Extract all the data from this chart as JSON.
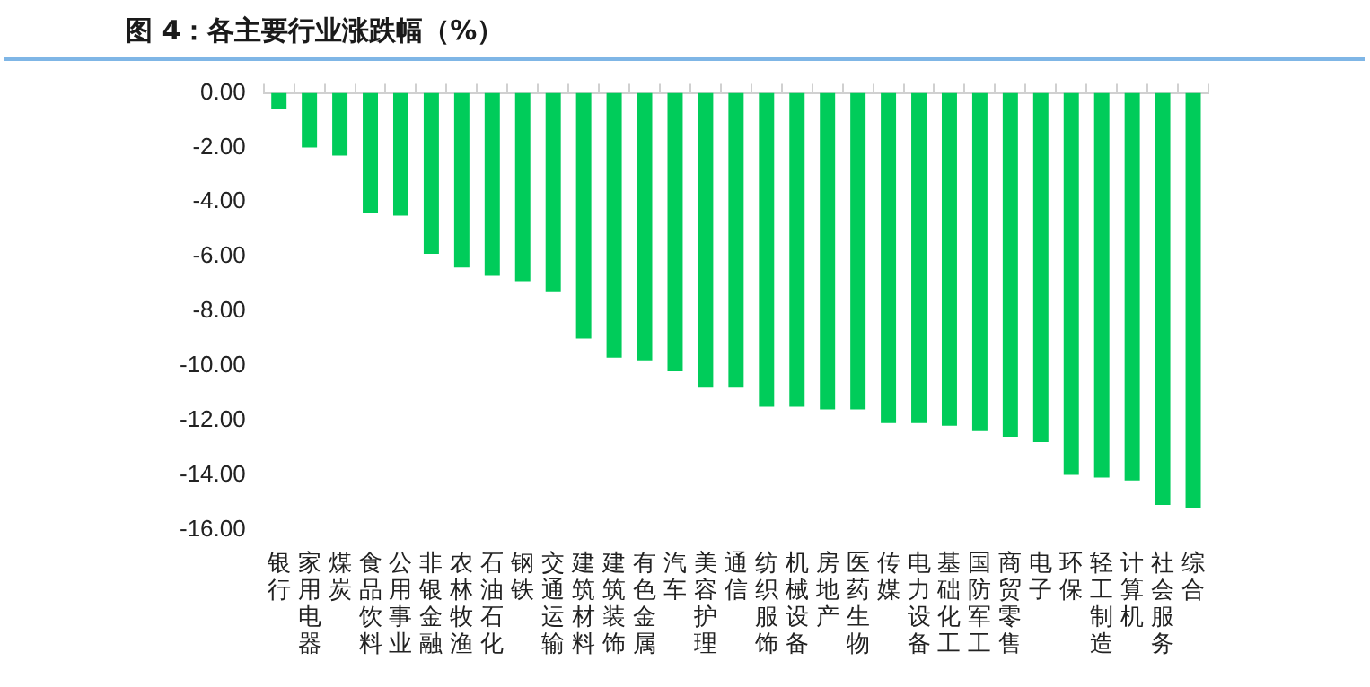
{
  "chart_data": {
    "type": "bar",
    "title": "图 4：各主要行业涨跌幅（%）",
    "categories": [
      "银行",
      "家用电器",
      "煤炭",
      "食品饮料",
      "公用事业",
      "非银金融",
      "农林牧渔",
      "石油石化",
      "钢铁",
      "交通运输",
      "建筑材料",
      "建筑装饰",
      "有色金属",
      "汽车",
      "美容护理",
      "通信",
      "纺织服饰",
      "机械设备",
      "房地产",
      "医药生物",
      "传媒",
      "电力设备",
      "基础化工",
      "国防军工",
      "商贸零售",
      "电子",
      "环保",
      "轻工制造",
      "计算机",
      "社会服务",
      "综合"
    ],
    "values": [
      -0.6,
      -2.0,
      -2.3,
      -4.4,
      -4.5,
      -5.9,
      -6.4,
      -6.7,
      -6.9,
      -7.3,
      -9.0,
      -9.7,
      -9.8,
      -10.2,
      -10.8,
      -10.8,
      -11.5,
      -11.5,
      -11.6,
      -11.6,
      -12.1,
      -12.1,
      -12.2,
      -12.4,
      -12.6,
      -12.8,
      -14.0,
      -14.1,
      -14.2,
      -15.1,
      -15.2
    ],
    "color": "#00cc5a",
    "ylim": [
      -16,
      0
    ],
    "yticks": [
      {
        "value": 0,
        "label": "0.00"
      },
      {
        "value": -2,
        "label": "-2.00"
      },
      {
        "value": -4,
        "label": "-4.00"
      },
      {
        "value": -6,
        "label": "-6.00"
      },
      {
        "value": -8,
        "label": "-8.00"
      },
      {
        "value": -10,
        "label": "-10.00"
      },
      {
        "value": -12,
        "label": "-12.00"
      },
      {
        "value": -14,
        "label": "-14.00"
      },
      {
        "value": -16,
        "label": "-16.00"
      }
    ],
    "grid": false,
    "legend": false
  }
}
